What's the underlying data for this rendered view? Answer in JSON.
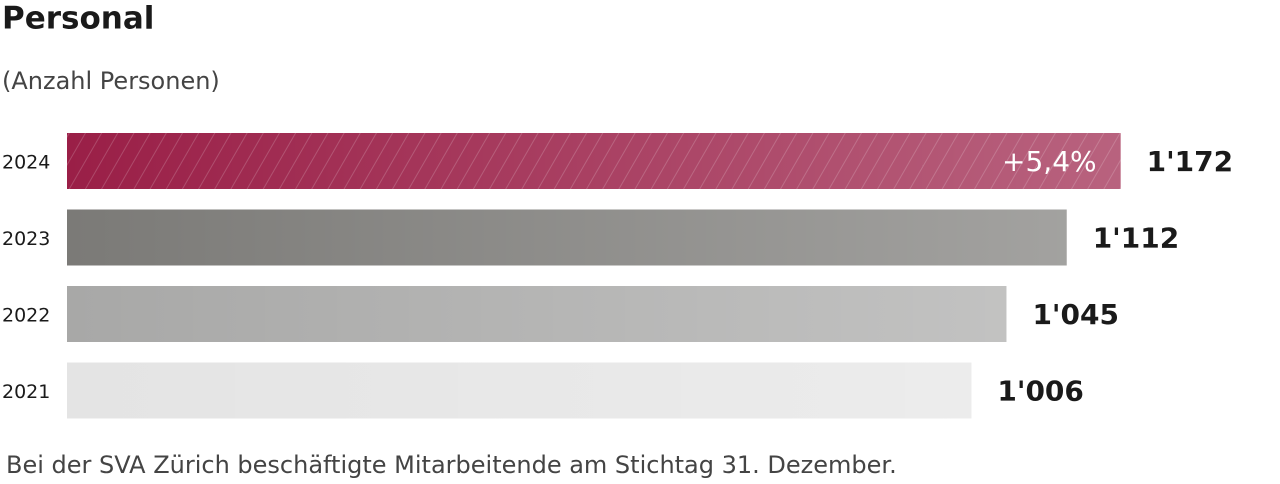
{
  "chart_data": {
    "type": "hbar",
    "title": "Personal",
    "subtitle": "(Anzahl Personen)",
    "categories": [
      "2024",
      "2023",
      "2022",
      "2021"
    ],
    "values": [
      1172,
      1112,
      1045,
      1006
    ],
    "value_labels": [
      "1'172",
      "1'112",
      "1'045",
      "1'006"
    ],
    "colors": [
      "#9a1f47",
      "#7b7a77",
      "#a8a8a7",
      "#e4e4e4"
    ],
    "hatch": [
      true,
      false,
      false,
      false
    ],
    "annotation": "+5,4%",
    "footnote": "Bei der SVA Zürich beschäftigte Mitarbeitende am Stichtag 31. Dezember."
  }
}
